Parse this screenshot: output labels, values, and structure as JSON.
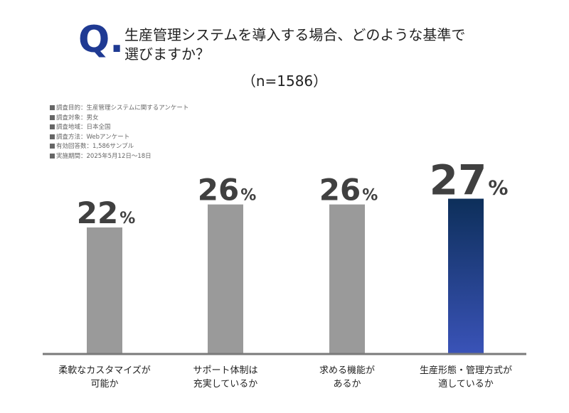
{
  "header": {
    "q_mark": "Q",
    "q_dot": ".",
    "title_line1": "生産管理システムを導入する場合、どのような基準で",
    "title_line2": "選びますか？",
    "sample_size": "（n=1586）"
  },
  "survey_info": [
    "調査目的：生産管理システムに関するアンケート",
    "調査対象：男女",
    "調査地域：日本全国",
    "調査方法：Webアンケート",
    "有効回答数：1,586サンプル",
    "実施期間：2025年5月12日～18日"
  ],
  "colors": {
    "bar_default": "#9a9a9a",
    "bar_highlight_top": "#0d2f5a",
    "bar_highlight_bottom": "#3a53b8",
    "value_text": "#404040",
    "axis": "#7a7a7a",
    "q_mark": "#1f3a93"
  },
  "chart_data": {
    "type": "bar",
    "categories": [
      "柔軟なカスタマイズが可能か",
      "サポート体制は充実しているか",
      "求める機能があるか",
      "生産形態・管理方式が適しているか"
    ],
    "category_lines": [
      [
        "柔軟なカスタマイズが",
        "可能か"
      ],
      [
        "サポート体制は",
        "充実しているか"
      ],
      [
        "求める機能が",
        "あるか"
      ],
      [
        "生産形態・管理方式が",
        "適しているか"
      ]
    ],
    "values": [
      22,
      26,
      26,
      27
    ],
    "value_unit": "%",
    "highlight_index": 3,
    "ylim": [
      0,
      32
    ],
    "grid": false
  }
}
